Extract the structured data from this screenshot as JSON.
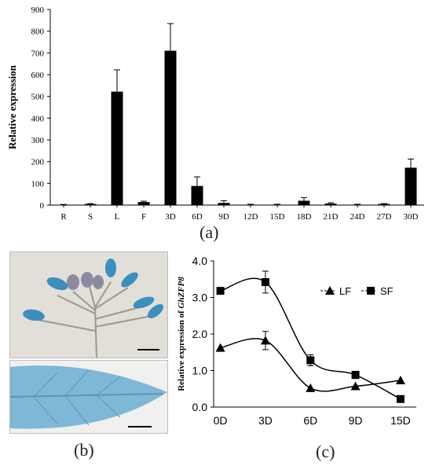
{
  "panels": {
    "a": "(a)",
    "b": "(b)",
    "c": "(c)"
  },
  "chart_data": [
    {
      "type": "bar",
      "ylabel": "Relative expression",
      "categories": [
        "R",
        "S",
        "L",
        "F",
        "3D",
        "6D",
        "9D",
        "12D",
        "15D",
        "18D",
        "21D",
        "24D",
        "27D",
        "30D"
      ],
      "values": [
        2,
        5,
        522,
        14,
        710,
        88,
        10,
        2,
        2,
        20,
        7,
        2,
        5,
        172
      ],
      "errors": [
        1,
        2,
        100,
        4,
        125,
        42,
        10,
        2,
        2,
        15,
        4,
        2,
        2,
        40
      ],
      "ylim": [
        0,
        900
      ],
      "yticks": [
        0,
        100,
        200,
        300,
        400,
        500,
        600,
        700,
        800,
        900
      ],
      "color": "#000000"
    },
    {
      "type": "line",
      "ylabel_prefix": "Relative expression of ",
      "ylabel_gene": "GhZFP8",
      "categories": [
        "0D",
        "3D",
        "6D",
        "9D",
        "15D"
      ],
      "ylim": [
        0,
        4
      ],
      "yticks": [
        "0.0",
        "1.0",
        "2.0",
        "3.0",
        "4.0"
      ],
      "legend_position": "top-right",
      "series": [
        {
          "name": "LF",
          "marker": "triangle",
          "values": [
            1.62,
            1.82,
            0.52,
            0.57,
            0.73
          ],
          "errors": [
            0,
            0.25,
            0,
            0,
            0
          ]
        },
        {
          "name": "SF",
          "marker": "square",
          "values": [
            3.18,
            3.42,
            1.28,
            0.88,
            0.22
          ],
          "errors": [
            0,
            0.3,
            0.15,
            0.1,
            0
          ]
        }
      ]
    }
  ]
}
